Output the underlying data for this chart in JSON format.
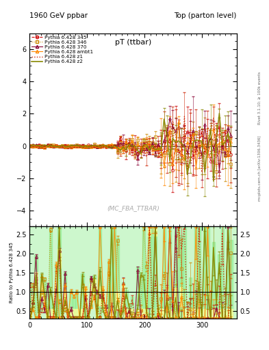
{
  "title_left": "1960 GeV ppbar",
  "title_right": "Top (parton level)",
  "plot_title": "pT (ttbar)",
  "watermark": "(MC_FBA_TTBAR)",
  "right_label1": "Rivet 3.1.10; ≥ 100k events",
  "right_label2": "mcplots.cern.ch [arXiv:1306.3436]",
  "ylabel_ratio": "Ratio to Pythia 6.428 345",
  "ylim_main": [
    -5,
    7
  ],
  "ylim_ratio": [
    0.3,
    2.7
  ],
  "xlim": [
    0,
    360
  ],
  "main_yticks": [
    -4,
    -2,
    0,
    2,
    4,
    6
  ],
  "ratio_yticks": [
    0.5,
    1.0,
    1.5,
    2.0,
    2.5
  ],
  "xticks": [
    0,
    100,
    200,
    300
  ],
  "series": [
    {
      "label": "Pythia 6.428 345",
      "color": "#cc0000",
      "linestyle": "dashed",
      "marker": "o",
      "markersize": 3,
      "linewidth": 0.8,
      "fillstyle": "none"
    },
    {
      "label": "Pythia 6.428 346",
      "color": "#cc8800",
      "linestyle": "dotted",
      "marker": "s",
      "markersize": 3,
      "linewidth": 0.8,
      "fillstyle": "none"
    },
    {
      "label": "Pythia 6.428 370",
      "color": "#880033",
      "linestyle": "solid",
      "marker": "^",
      "markersize": 3,
      "linewidth": 0.8,
      "fillstyle": "none"
    },
    {
      "label": "Pythia 6.428 ambt1",
      "color": "#ff8800",
      "linestyle": "solid",
      "marker": "^",
      "markersize": 3,
      "linewidth": 0.8,
      "fillstyle": "none"
    },
    {
      "label": "Pythia 6.428 z1",
      "color": "#cc2200",
      "linestyle": "dotted",
      "marker": "None",
      "markersize": 0,
      "linewidth": 1.0,
      "fillstyle": "none"
    },
    {
      "label": "Pythia 6.428 z2",
      "color": "#888800",
      "linestyle": "solid",
      "marker": "None",
      "markersize": 0,
      "linewidth": 1.2,
      "fillstyle": "none"
    }
  ],
  "background_color": "#ffffff",
  "band_green": "#90ee90",
  "band_yellow": "#ffff99"
}
